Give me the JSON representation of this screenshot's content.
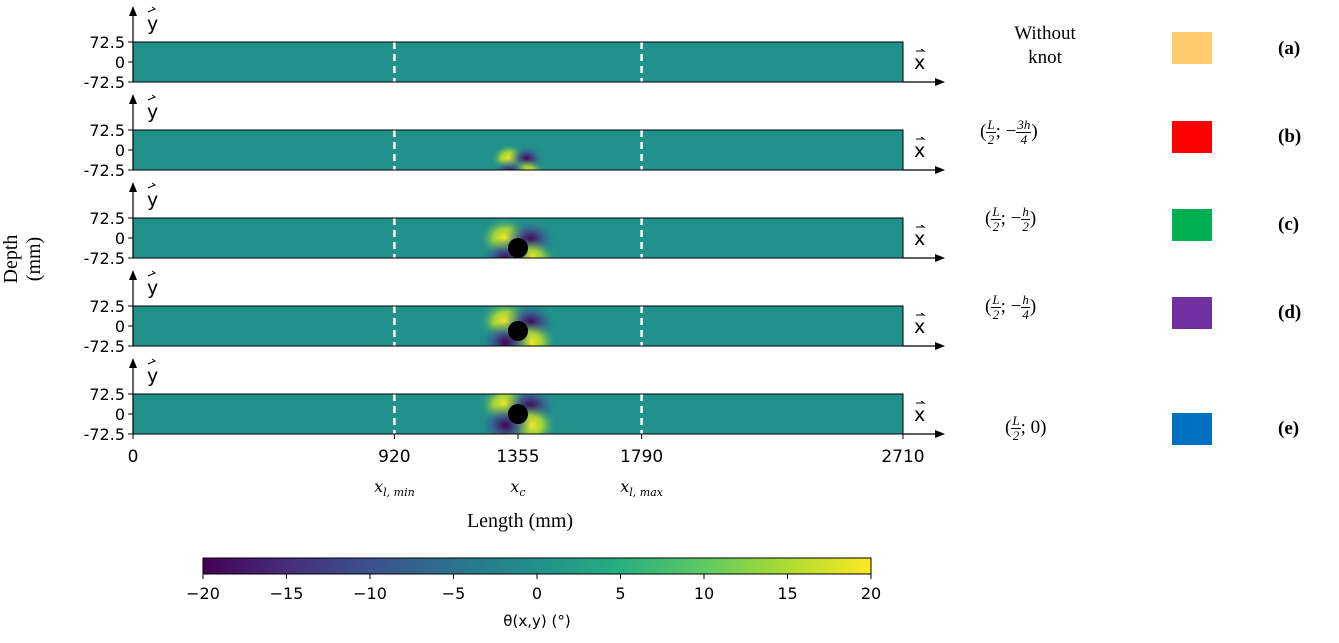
{
  "chart_data": {
    "type": "heatmap",
    "title": "",
    "xlabel": "Length (mm)",
    "ylabel": "Depth (mm)",
    "x_ticks": [
      "0",
      "920",
      "1355",
      "1790",
      "2710"
    ],
    "x_tick_values": [
      0,
      920,
      1355,
      1790,
      2710
    ],
    "x_sub_labels": [
      {
        "x": 920,
        "label": "x_{l,min}",
        "sub": "l, min",
        "base": "x"
      },
      {
        "x": 1355,
        "label": "x_c",
        "sub": "c",
        "base": "x"
      },
      {
        "x": 1790,
        "label": "x_{l,max}",
        "sub": "l, max",
        "base": "x"
      }
    ],
    "y_ticks": [
      "72.5",
      "0",
      "-72.5"
    ],
    "y_tick_values": [
      72.5,
      0,
      -72.5
    ],
    "xlim": [
      0,
      2710
    ],
    "ylim": [
      -72.5,
      72.5
    ],
    "dashed_lines_x": [
      920,
      1790
    ],
    "axis_arrow_labels": {
      "x": "x",
      "y": "y"
    },
    "colorbar": {
      "label": "θ(x,y) (°)",
      "range": [
        -20,
        20
      ],
      "ticks": [
        "−20",
        "−15",
        "−10",
        "−5",
        "0",
        "5",
        "10",
        "15",
        "20"
      ],
      "tick_values": [
        -20,
        -15,
        -10,
        -5,
        0,
        5,
        10,
        15,
        20
      ],
      "colormap": "viridis"
    },
    "panels": [
      {
        "tag": "(a)",
        "knot": null,
        "knot_diameter_mm": 0,
        "legend_color": "#FFCB6B"
      },
      {
        "tag": "(b)",
        "knot": {
          "x_mm": 1355,
          "y_mm": -54.375
        },
        "knot_diameter_mm": 40,
        "legend_color": "#FF0000"
      },
      {
        "tag": "(c)",
        "knot": {
          "x_mm": 1355,
          "y_mm": -36.25
        },
        "knot_diameter_mm": 70,
        "legend_color": "#00B050"
      },
      {
        "tag": "(d)",
        "knot": {
          "x_mm": 1355,
          "y_mm": -18.125
        },
        "knot_diameter_mm": 70,
        "legend_color": "#7030A0"
      },
      {
        "tag": "(e)",
        "knot": {
          "x_mm": 1355,
          "y_mm": 0
        },
        "knot_diameter_mm": 70,
        "legend_color": "#0070C0"
      }
    ]
  },
  "legend": {
    "a": {
      "line1": "Without",
      "line2": "knot"
    },
    "b": {
      "open": "(",
      "num1": "L",
      "den1": "2",
      "sep": "; −",
      "num2": "3h",
      "den2": "4",
      "close": ")"
    },
    "c": {
      "open": "(",
      "num1": "L",
      "den1": "2",
      "sep": "; −",
      "num2": "h",
      "den2": "2",
      "close": ")"
    },
    "d": {
      "open": "(",
      "num1": "L",
      "den1": "2",
      "sep": "; −",
      "num2": "h",
      "den2": "4",
      "close": ")"
    },
    "e": {
      "open": "(",
      "num1": "L",
      "den1": "2",
      "sep": "; 0)"
    }
  },
  "colors": {
    "background_field": "#21918c",
    "knot": "#000000",
    "dashed_line": "#ffffff"
  }
}
